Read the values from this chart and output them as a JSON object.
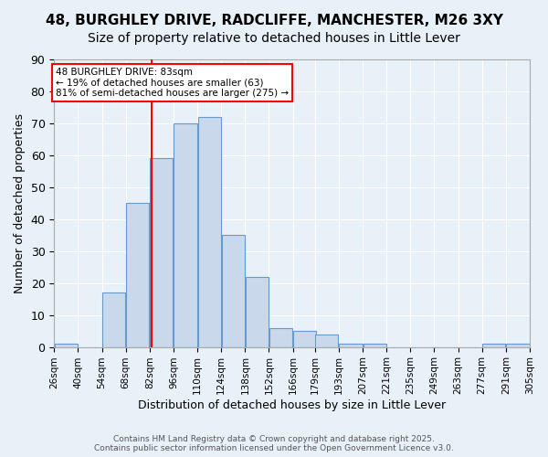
{
  "title1": "48, BURGHLEY DRIVE, RADCLIFFE, MANCHESTER, M26 3XY",
  "title2": "Size of property relative to detached houses in Little Lever",
  "xlabel": "Distribution of detached houses by size in Little Lever",
  "ylabel": "Number of detached properties",
  "bins": [
    26,
    40,
    54,
    68,
    82,
    96,
    110,
    124,
    138,
    152,
    166,
    179,
    193,
    207,
    221,
    235,
    249,
    263,
    277,
    291,
    305
  ],
  "bin_labels": [
    "26sqm",
    "40sqm",
    "54sqm",
    "68sqm",
    "82sqm",
    "96sqm",
    "110sqm",
    "124sqm",
    "138sqm",
    "152sqm",
    "166sqm",
    "179sqm",
    "193sqm",
    "207sqm",
    "221sqm",
    "235sqm",
    "249sqm",
    "263sqm",
    "277sqm",
    "291sqm",
    "305sqm"
  ],
  "values": [
    1,
    0,
    17,
    45,
    59,
    70,
    72,
    35,
    22,
    6,
    5,
    4,
    1,
    1,
    0,
    0,
    0,
    0,
    1,
    1
  ],
  "bar_color": "#c9d9eb",
  "bar_edge_color": "#6699cc",
  "property_line_x": 83,
  "property_line_color": "red",
  "annotation_text": "48 BURGHLEY DRIVE: 83sqm\n← 19% of detached houses are smaller (63)\n81% of semi-detached houses are larger (275) →",
  "annotation_box_color": "white",
  "annotation_box_edge_color": "red",
  "ylim": [
    0,
    90
  ],
  "yticks": [
    0,
    10,
    20,
    30,
    40,
    50,
    60,
    70,
    80,
    90
  ],
  "background_color": "#e8f0f8",
  "plot_bg_color": "#e8f0f8",
  "footer": "Contains HM Land Registry data © Crown copyright and database right 2025.\nContains public sector information licensed under the Open Government Licence v3.0.",
  "title_fontsize": 11,
  "subtitle_fontsize": 10
}
